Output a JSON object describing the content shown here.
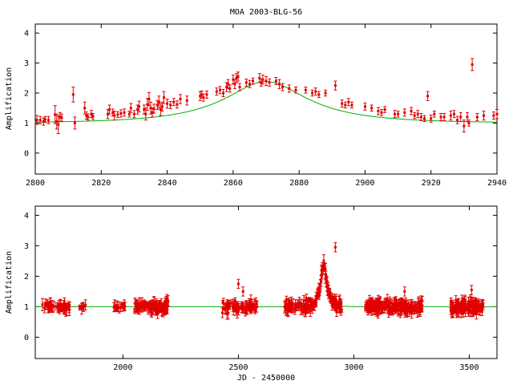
{
  "title": "MOA 2003-BLG-56",
  "colors": {
    "data": "#e00000",
    "model": "#00b000"
  },
  "chart_data": [
    {
      "type": "scatter",
      "title": "MOA 2003-BLG-56",
      "xlabel": "",
      "ylabel": "Amplification",
      "xlim": [
        2800,
        2940
      ],
      "ylim": [
        -0.7,
        4.3
      ],
      "xticks": [
        2800,
        2820,
        2840,
        2860,
        2880,
        2900,
        2920,
        2940
      ],
      "yticks": [
        0,
        1,
        2,
        3,
        4
      ],
      "model": {
        "t0": 2870,
        "tE": 28.5,
        "u0": 0.45,
        "baseline": 1.0
      },
      "series": [
        {
          "points": [
            [
              2800.5,
              1.1,
              0.15
            ],
            [
              2801.5,
              1.1,
              0.12
            ],
            [
              2802.5,
              1.05,
              0.12
            ],
            [
              2803,
              1.12,
              0.1
            ],
            [
              2804,
              1.1,
              0.12
            ],
            [
              2806,
              1.28,
              0.3
            ],
            [
              2806.5,
              1.05,
              0.25
            ],
            [
              2807,
              0.95,
              0.3
            ],
            [
              2807.5,
              1.2,
              0.15
            ],
            [
              2808,
              1.18,
              0.12
            ],
            [
              2811.5,
              1.95,
              0.25
            ],
            [
              2812,
              1.0,
              0.2
            ],
            [
              2815,
              1.5,
              0.2
            ],
            [
              2815.5,
              1.25,
              0.12
            ],
            [
              2816,
              1.2,
              0.1
            ],
            [
              2817,
              1.3,
              0.12
            ],
            [
              2817.5,
              1.22,
              0.1
            ],
            [
              2822,
              1.3,
              0.15
            ],
            [
              2822.5,
              1.45,
              0.15
            ],
            [
              2823.5,
              1.35,
              0.12
            ],
            [
              2824,
              1.25,
              0.15
            ],
            [
              2825,
              1.28,
              0.1
            ],
            [
              2826,
              1.32,
              0.12
            ],
            [
              2827,
              1.35,
              0.12
            ],
            [
              2828.5,
              1.3,
              0.1
            ],
            [
              2829,
              1.5,
              0.15
            ],
            [
              2830,
              1.3,
              0.12
            ],
            [
              2831,
              1.45,
              0.15
            ],
            [
              2831.5,
              1.55,
              0.18
            ],
            [
              2833,
              1.45,
              0.15
            ],
            [
              2833.5,
              1.3,
              0.2
            ],
            [
              2834,
              1.62,
              0.2
            ],
            [
              2834.5,
              1.8,
              0.22
            ],
            [
              2835,
              1.5,
              0.2
            ],
            [
              2835.5,
              1.35,
              0.15
            ],
            [
              2836,
              1.48,
              0.15
            ],
            [
              2837,
              1.6,
              0.15
            ],
            [
              2837.5,
              1.7,
              0.2
            ],
            [
              2838,
              1.45,
              0.2
            ],
            [
              2838.5,
              1.55,
              0.15
            ],
            [
              2839,
              1.85,
              0.2
            ],
            [
              2840,
              1.65,
              0.15
            ],
            [
              2841,
              1.6,
              0.12
            ],
            [
              2842,
              1.7,
              0.12
            ],
            [
              2843,
              1.62,
              0.12
            ],
            [
              2844,
              1.8,
              0.15
            ],
            [
              2846,
              1.75,
              0.15
            ],
            [
              2850,
              1.9,
              0.15
            ],
            [
              2850.5,
              1.95,
              0.12
            ],
            [
              2851,
              1.85,
              0.12
            ],
            [
              2852,
              1.95,
              0.12
            ],
            [
              2855,
              2.05,
              0.12
            ],
            [
              2856,
              2.1,
              0.12
            ],
            [
              2857,
              2.0,
              0.12
            ],
            [
              2858,
              2.2,
              0.15
            ],
            [
              2858.5,
              2.3,
              0.15
            ],
            [
              2859,
              2.15,
              0.12
            ],
            [
              2860,
              2.45,
              0.15
            ],
            [
              2860.5,
              2.3,
              0.15
            ],
            [
              2861,
              2.5,
              0.15
            ],
            [
              2861.5,
              2.55,
              0.15
            ],
            [
              2862,
              2.2,
              0.12
            ],
            [
              2864,
              2.35,
              0.12
            ],
            [
              2865,
              2.3,
              0.12
            ],
            [
              2866,
              2.4,
              0.1
            ],
            [
              2868,
              2.5,
              0.15
            ],
            [
              2868.5,
              2.35,
              0.12
            ],
            [
              2869,
              2.45,
              0.15
            ],
            [
              2870,
              2.4,
              0.15
            ],
            [
              2871,
              2.35,
              0.12
            ],
            [
              2873,
              2.4,
              0.12
            ],
            [
              2874,
              2.3,
              0.15
            ],
            [
              2875,
              2.2,
              0.12
            ],
            [
              2877,
              2.15,
              0.12
            ],
            [
              2879,
              2.1,
              0.1
            ],
            [
              2882,
              2.1,
              0.1
            ],
            [
              2884,
              2.0,
              0.1
            ],
            [
              2885,
              2.05,
              0.12
            ],
            [
              2886,
              1.95,
              0.1
            ],
            [
              2888,
              2.0,
              0.1
            ],
            [
              2891,
              2.25,
              0.15
            ],
            [
              2893,
              1.65,
              0.12
            ],
            [
              2894,
              1.6,
              0.1
            ],
            [
              2895,
              1.7,
              0.12
            ],
            [
              2896,
              1.6,
              0.1
            ],
            [
              2900,
              1.55,
              0.12
            ],
            [
              2902,
              1.5,
              0.1
            ],
            [
              2904,
              1.4,
              0.12
            ],
            [
              2905,
              1.35,
              0.1
            ],
            [
              2906,
              1.45,
              0.1
            ],
            [
              2909,
              1.3,
              0.12
            ],
            [
              2910,
              1.3,
              0.1
            ],
            [
              2912,
              1.35,
              0.12
            ],
            [
              2914,
              1.4,
              0.12
            ],
            [
              2915,
              1.25,
              0.1
            ],
            [
              2916,
              1.3,
              0.12
            ],
            [
              2917,
              1.2,
              0.12
            ],
            [
              2918,
              1.15,
              0.1
            ],
            [
              2919,
              1.9,
              0.15
            ],
            [
              2920,
              1.15,
              0.12
            ],
            [
              2921,
              1.3,
              0.1
            ],
            [
              2923,
              1.2,
              0.12
            ],
            [
              2924,
              1.2,
              0.12
            ],
            [
              2926,
              1.25,
              0.15
            ],
            [
              2927,
              1.3,
              0.12
            ],
            [
              2928,
              1.1,
              0.12
            ],
            [
              2929,
              1.2,
              0.15
            ],
            [
              2930,
              0.9,
              0.2
            ],
            [
              2931,
              1.2,
              0.15
            ],
            [
              2931.5,
              1.0,
              0.1
            ],
            [
              2932.5,
              2.95,
              0.2
            ],
            [
              2934,
              1.2,
              0.12
            ],
            [
              2936,
              1.25,
              0.15
            ],
            [
              2939,
              1.25,
              0.12
            ],
            [
              2940,
              1.3,
              0.15
            ]
          ]
        }
      ]
    },
    {
      "type": "scatter",
      "title": "",
      "xlabel": "JD - 2450000",
      "ylabel": "Amplification",
      "xlim": [
        1620,
        3620
      ],
      "ylim": [
        -0.7,
        4.3
      ],
      "xticks": [
        2000,
        2500,
        3000,
        3500
      ],
      "yticks": [
        0,
        1,
        2,
        3,
        4
      ],
      "model": {
        "t0": 2870,
        "tE": 28.5,
        "u0": 0.45,
        "baseline": 1.0
      },
      "seasons": [
        {
          "start": 1650,
          "end": 1770,
          "n": 55,
          "scatter": 0.12
        },
        {
          "start": 1810,
          "end": 1840,
          "n": 8,
          "scatter": 0.08
        },
        {
          "start": 1960,
          "end": 2010,
          "n": 18,
          "scatter": 0.12
        },
        {
          "start": 2050,
          "end": 2200,
          "n": 110,
          "scatter": 0.18
        },
        {
          "start": 2430,
          "end": 2580,
          "n": 80,
          "scatter": 0.18
        },
        {
          "start": 2700,
          "end": 2950,
          "n": 170,
          "scatter": 0.2
        },
        {
          "start": 3050,
          "end": 3300,
          "n": 190,
          "scatter": 0.2
        },
        {
          "start": 3420,
          "end": 3560,
          "n": 130,
          "scatter": 0.2
        }
      ],
      "outliers": [
        [
          2500,
          1.75
        ],
        [
          2520,
          1.5
        ],
        [
          3220,
          1.5
        ],
        [
          2920,
          2.95
        ],
        [
          3510,
          1.55
        ],
        [
          2190,
          1.25
        ]
      ]
    }
  ]
}
